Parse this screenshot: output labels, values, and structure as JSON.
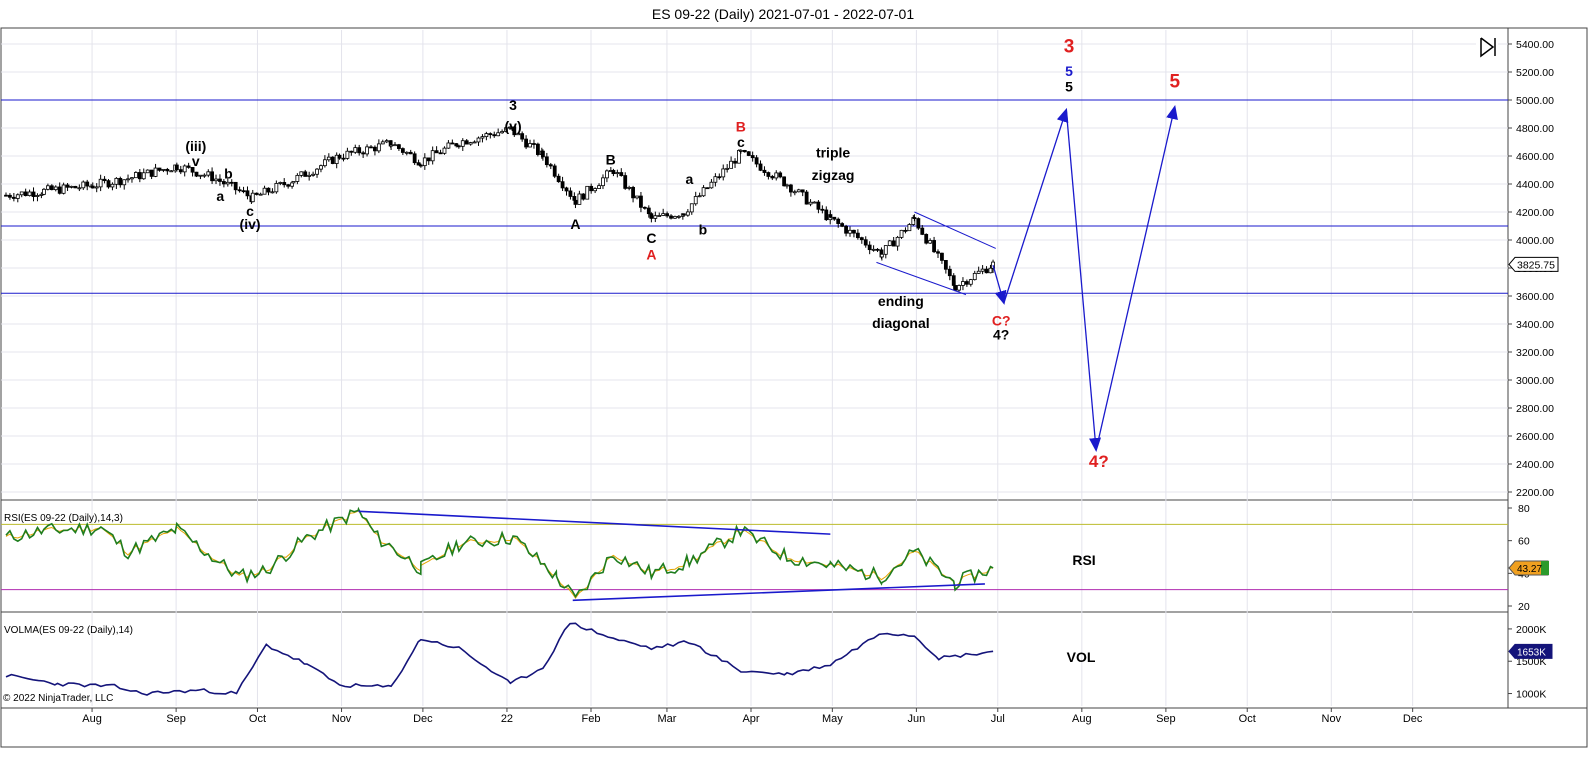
{
  "window": {
    "title": "ES 09-22 (Daily)  2021-07-01 - 2022-07-01"
  },
  "colors": {
    "blue": "#1a1acc",
    "red": "#e02020",
    "black": "#000000",
    "rsi": "#1e7d1e",
    "rsi_avg": "#e5a400",
    "vol": "#14147a",
    "grid": "#e4e4ec",
    "upper_band": "#bcbc2c",
    "lower_band": "#b02cb0"
  },
  "copyright": "© 2022 NinjaTrader, LLC",
  "chart_data": [
    {
      "type": "candlestick",
      "name": "price",
      "y_ticks": [
        "5400.00",
        "5200.00",
        "5000.00",
        "4800.00",
        "4600.00",
        "4400.00",
        "4200.00",
        "4000.00",
        "3800.00",
        "3600.00",
        "3400.00",
        "3200.00",
        "3000.00",
        "2800.00",
        "2600.00",
        "2400.00",
        "2200.00"
      ],
      "ylim": [
        2200,
        5400
      ],
      "x_ticks": [
        "Aug",
        "Sep",
        "Oct",
        "Nov",
        "Dec",
        "22",
        "Feb",
        "Mar",
        "Apr",
        "May",
        "Jun",
        "Jul",
        "Aug",
        "Sep",
        "Oct",
        "Nov",
        "Dec"
      ],
      "last_price": "3825.75",
      "horizontal_lines": [
        5000,
        4100,
        3620
      ],
      "closes": [
        [
          "2021-07-01",
          4320
        ],
        [
          "2021-07-15",
          4350
        ],
        [
          "2021-08-02",
          4390
        ],
        [
          "2021-08-15",
          4440
        ],
        [
          "2021-09-02",
          4530
        ],
        [
          "2021-09-15",
          4450
        ],
        [
          "2021-09-30",
          4300
        ],
        [
          "2021-10-15",
          4430
        ],
        [
          "2021-11-01",
          4600
        ],
        [
          "2021-11-20",
          4690
        ],
        [
          "2021-12-01",
          4560
        ],
        [
          "2021-12-15",
          4700
        ],
        [
          "2022-01-03",
          4790
        ],
        [
          "2022-01-15",
          4600
        ],
        [
          "2022-01-27",
          4280
        ],
        [
          "2022-02-10",
          4500
        ],
        [
          "2022-02-24",
          4150
        ],
        [
          "2022-03-08",
          4200
        ],
        [
          "2022-03-29",
          4620
        ],
        [
          "2022-04-15",
          4400
        ],
        [
          "2022-05-01",
          4150
        ],
        [
          "2022-05-20",
          3900
        ],
        [
          "2022-06-01",
          4150
        ],
        [
          "2022-06-16",
          3670
        ],
        [
          "2022-06-30",
          3825.75
        ]
      ],
      "trendlines": [
        {
          "from": [
            "2022-05-18",
            3840
          ],
          "to": [
            "2022-06-20",
            3610
          ]
        },
        {
          "from": [
            "2022-06-01",
            4200
          ],
          "to": [
            "2022-07-01",
            3940
          ]
        }
      ],
      "projection_arrows": [
        {
          "from": [
            "2022-06-30",
            3820
          ],
          "to": [
            "2022-07-04",
            3550
          ]
        },
        {
          "from": [
            "2022-07-04",
            3550
          ],
          "to": [
            "2022-07-27",
            4930
          ]
        },
        {
          "from": [
            "2022-07-27",
            4930
          ],
          "to": [
            "2022-08-07",
            2500
          ]
        },
        {
          "from": [
            "2022-08-07",
            2500
          ],
          "to": [
            "2022-09-05",
            4950
          ]
        }
      ],
      "annotations": [
        {
          "text": "(iii)",
          "x": "2021-09-09",
          "y": 4635,
          "color": "black"
        },
        {
          "text": "v",
          "x": "2021-09-09",
          "y": 4530,
          "color": "black"
        },
        {
          "text": "b",
          "x": "2021-09-21",
          "y": 4440,
          "color": "black"
        },
        {
          "text": "a",
          "x": "2021-09-18",
          "y": 4280,
          "color": "black"
        },
        {
          "text": "c",
          "x": "2021-09-29",
          "y": 4170,
          "color": "black"
        },
        {
          "text": "(iv)",
          "x": "2021-09-29",
          "y": 4080,
          "color": "black"
        },
        {
          "text": "3",
          "x": "2022-01-04",
          "y": 4930,
          "color": "black"
        },
        {
          "text": "(v)",
          "x": "2022-01-04",
          "y": 4780,
          "color": "black"
        },
        {
          "text": "A",
          "x": "2022-01-27",
          "y": 4080,
          "color": "black"
        },
        {
          "text": "B",
          "x": "2022-02-09",
          "y": 4540,
          "color": "black"
        },
        {
          "text": "a",
          "x": "2022-03-10",
          "y": 4400,
          "color": "black"
        },
        {
          "text": "C",
          "x": "2022-02-24",
          "y": 3980,
          "color": "black"
        },
        {
          "text": "A",
          "x": "2022-02-24",
          "y": 3860,
          "color": "red"
        },
        {
          "text": "b",
          "x": "2022-03-15",
          "y": 4040,
          "color": "black"
        },
        {
          "text": "B",
          "x": "2022-03-29",
          "y": 4775,
          "color": "red"
        },
        {
          "text": "c",
          "x": "2022-03-29",
          "y": 4665,
          "color": "black"
        },
        {
          "text": "triple",
          "x": "2022-05-02",
          "y": 4590,
          "color": "black"
        },
        {
          "text": "zigzag",
          "x": "2022-05-02",
          "y": 4430,
          "color": "black"
        },
        {
          "text": "ending",
          "x": "2022-05-27",
          "y": 3530,
          "color": "black"
        },
        {
          "text": "diagonal",
          "x": "2022-05-27",
          "y": 3370,
          "color": "black"
        },
        {
          "text": "C?",
          "x": "2022-07-03",
          "y": 3390,
          "color": "red"
        },
        {
          "text": "4?",
          "x": "2022-07-03",
          "y": 3290,
          "color": "black"
        },
        {
          "text": "3",
          "x": "2022-07-28",
          "y": 5340,
          "color": "red"
        },
        {
          "text": "5",
          "x": "2022-07-28",
          "y": 5170,
          "color": "blue"
        },
        {
          "text": "5",
          "x": "2022-07-28",
          "y": 5060,
          "color": "black"
        },
        {
          "text": "5",
          "x": "2022-09-05",
          "y": 5090,
          "color": "red"
        },
        {
          "text": "4?",
          "x": "2022-08-08",
          "y": 2380,
          "color": "red"
        }
      ]
    },
    {
      "type": "line",
      "name": "RSI",
      "title": "RSI(ES 09-22 (Daily),14,3)",
      "panel_label": "RSI",
      "y_ticks": [
        "80",
        "60",
        "40",
        "20"
      ],
      "ylim": [
        20,
        80
      ],
      "bands": [
        70,
        30
      ],
      "current_value": "43.27",
      "series": [
        {
          "name": "RSI",
          "values": [
            [
              "2021-07-01",
              62
            ],
            [
              "2021-07-15",
              66
            ],
            [
              "2021-08-05",
              68
            ],
            [
              "2021-08-15",
              53
            ],
            [
              "2021-09-02",
              67
            ],
            [
              "2021-09-15",
              50
            ],
            [
              "2021-09-25",
              38
            ],
            [
              "2021-10-05",
              42
            ],
            [
              "2021-10-20",
              62
            ],
            [
              "2021-11-08",
              78
            ],
            [
              "2021-11-15",
              62
            ],
            [
              "2021-12-01",
              43
            ],
            [
              "2021-12-15",
              58
            ],
            [
              "2022-01-04",
              62
            ],
            [
              "2022-01-20",
              38
            ],
            [
              "2022-01-27",
              24
            ],
            [
              "2022-02-10",
              52
            ],
            [
              "2022-02-24",
              40
            ],
            [
              "2022-03-10",
              47
            ],
            [
              "2022-03-29",
              66
            ],
            [
              "2022-04-15",
              50
            ],
            [
              "2022-05-01",
              45
            ],
            [
              "2022-05-20",
              38
            ],
            [
              "2022-06-01",
              53
            ],
            [
              "2022-06-16",
              34
            ],
            [
              "2022-06-30",
              43.27
            ]
          ]
        }
      ],
      "trendlines": [
        {
          "from": [
            "2021-11-08",
            78
          ],
          "to": [
            "2022-05-01",
            64
          ]
        },
        {
          "from": [
            "2022-01-26",
            23.5
          ],
          "to": [
            "2022-06-27",
            33.5
          ]
        }
      ]
    },
    {
      "type": "line",
      "name": "VOLMA",
      "title": "VOLMA(ES 09-22 (Daily),14)",
      "panel_label": "VOL",
      "y_ticks": [
        "2000K",
        "1500K",
        "1000K"
      ],
      "ylim": [
        900,
        2200
      ],
      "current_value": "1653K",
      "series": [
        {
          "name": "VOLMA",
          "values": [
            [
              "2021-07-01",
              1280
            ],
            [
              "2021-07-20",
              1150
            ],
            [
              "2021-08-10",
              1110
            ],
            [
              "2021-08-20",
              1000
            ],
            [
              "2021-09-10",
              1050
            ],
            [
              "2021-09-24",
              1000
            ],
            [
              "2021-10-05",
              1750
            ],
            [
              "2021-10-20",
              1450
            ],
            [
              "2021-11-01",
              1130
            ],
            [
              "2021-11-20",
              1100
            ],
            [
              "2021-12-01",
              1850
            ],
            [
              "2021-12-15",
              1700
            ],
            [
              "2022-01-03",
              1150
            ],
            [
              "2022-01-15",
              1400
            ],
            [
              "2022-01-25",
              2100
            ],
            [
              "2022-02-10",
              1850
            ],
            [
              "2022-02-24",
              1700
            ],
            [
              "2022-03-10",
              1800
            ],
            [
              "2022-03-29",
              1350
            ],
            [
              "2022-04-15",
              1300
            ],
            [
              "2022-05-01",
              1450
            ],
            [
              "2022-05-20",
              1950
            ],
            [
              "2022-06-01",
              1900
            ],
            [
              "2022-06-10",
              1550
            ],
            [
              "2022-06-20",
              1600
            ],
            [
              "2022-06-30",
              1653
            ]
          ]
        }
      ]
    }
  ]
}
